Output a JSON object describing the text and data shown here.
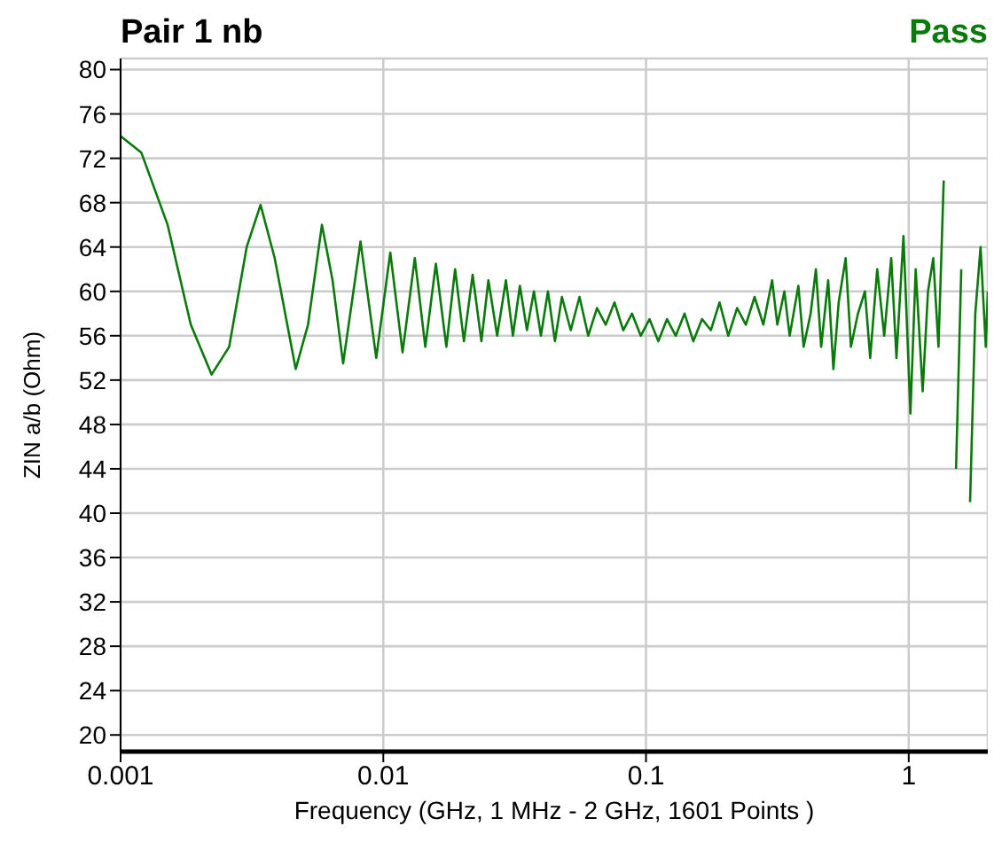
{
  "chart_data": {
    "type": "line",
    "title": "Pair 1 nb",
    "annotations": [
      "Pass"
    ],
    "xlabel": "Frequency (GHz, 1 MHz - 2 GHz, 1601 Points )",
    "ylabel": "ZIN a/b (Ohm)",
    "log": "x",
    "grid": true,
    "legend": false,
    "marker": "none",
    "line_style": "solid",
    "xlim": [
      0.001,
      2
    ],
    "xticks": [
      0.001,
      0.01,
      0.1,
      1
    ],
    "ylim": [
      18.5,
      81
    ],
    "yticks": [
      20,
      24,
      28,
      32,
      36,
      40,
      44,
      48,
      52,
      56,
      60,
      64,
      68,
      72,
      76,
      80
    ],
    "series": [
      {
        "color": "#0a7a0a",
        "x": [
          0.001,
          0.0012,
          0.00151,
          0.00185,
          0.00222,
          0.00259,
          0.00302,
          0.00341,
          0.00386,
          0.00464,
          0.00517,
          0.00584,
          0.00641,
          0.00703,
          0.00759,
          0.00819,
          0.0094,
          0.01063,
          0.01184,
          0.01318,
          0.01445,
          0.01585,
          0.01738,
          0.01876,
          0.02027,
          0.02188,
          0.02363,
          0.02512,
          0.02713,
          0.02929,
          0.03114,
          0.03311,
          0.03522,
          0.03744,
          0.03981,
          0.04233,
          0.04501,
          0.04786,
          0.05168,
          0.05582,
          0.06026,
          0.06507,
          0.07026,
          0.07586,
          0.08191,
          0.08844,
          0.0955,
          0.1031,
          0.1114,
          0.1202,
          0.1298,
          0.1402,
          0.1514,
          0.1634,
          0.1765,
          0.1905,
          0.2057,
          0.2222,
          0.2399,
          0.259,
          0.2797,
          0.302,
          0.3162,
          0.3363,
          0.3522,
          0.3802,
          0.3981,
          0.4233,
          0.4433,
          0.4642,
          0.4936,
          0.5168,
          0.5412,
          0.5754,
          0.6026,
          0.6408,
          0.6813,
          0.7134,
          0.7586,
          0.8066,
          0.8577,
          0.8981,
          0.955,
          1.015,
          1.063,
          1.13,
          1.184,
          1.24,
          1.298,
          1.359,
          1.445,
          1.514,
          1.585,
          1.66,
          1.712,
          1.792,
          1.877,
          1.965,
          2
        ],
        "values": [
          74,
          72.5,
          66,
          57,
          52.5,
          55,
          64,
          67.8,
          63,
          53,
          57,
          66,
          61,
          53.5,
          59,
          64.5,
          54,
          63.5,
          54.5,
          63,
          55,
          62.5,
          55,
          62,
          55.5,
          61.5,
          55.5,
          61,
          56,
          61,
          56,
          60.5,
          56.5,
          60,
          56,
          60,
          55.5,
          59.5,
          56.5,
          59.5,
          56,
          58.5,
          57,
          59,
          56.5,
          58,
          56,
          57.5,
          55.5,
          57.5,
          56,
          58,
          55.5,
          57.5,
          56.5,
          59,
          56,
          58.5,
          57,
          59.5,
          57,
          61,
          57,
          60,
          56,
          60.5,
          55,
          58,
          62,
          55,
          61,
          53,
          59,
          63,
          55,
          58,
          60,
          54,
          62,
          56,
          63,
          54,
          65,
          49,
          62,
          51,
          60,
          63,
          55,
          70,
          null,
          44,
          62,
          null,
          41,
          58,
          64,
          55,
          60
        ]
      }
    ]
  }
}
